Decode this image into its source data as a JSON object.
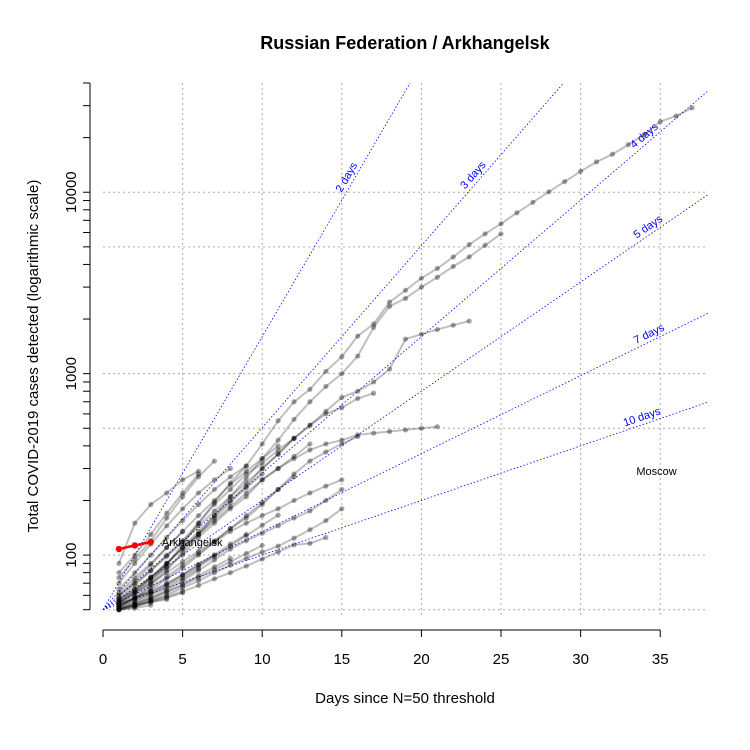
{
  "chart_data": {
    "type": "line",
    "title": "Russian Federation / Arkhangelsk",
    "xlabel": "Days since N=50 threshold",
    "ylabel": "Total COVID-2019 cases detected (logarithmic scale)",
    "y_scale": "log",
    "xlim": [
      0,
      38
    ],
    "ylim": [
      45,
      40000
    ],
    "x_ticks": [
      0,
      5,
      10,
      15,
      20,
      25,
      30,
      35
    ],
    "y_ticks": [
      100,
      1000,
      10000
    ],
    "grid": true,
    "doubling_guides": [
      {
        "label": "2 days",
        "doubling_days": 2,
        "label_x": 15.7
      },
      {
        "label": "3 days",
        "doubling_days": 3,
        "label_x": 23.6
      },
      {
        "label": "4 days",
        "doubling_days": 4,
        "label_x": 34.3
      },
      {
        "label": "5 days",
        "doubling_days": 5,
        "label_x": 34.5
      },
      {
        "label": "7 days",
        "doubling_days": 7,
        "label_x": 34.5
      },
      {
        "label": "10 days",
        "doubling_days": 10,
        "label_x": 34.0
      }
    ],
    "guide_color": "#0000ff",
    "series_color": "#000000",
    "highlight_color": "#ff0000",
    "highlight": {
      "name": "Arkhangelsk",
      "x": [
        1,
        2,
        3
      ],
      "y": [
        108,
        113,
        118
      ]
    },
    "annotations": [
      {
        "text": "Arkhangelsk",
        "x": 3.7,
        "y": 118
      },
      {
        "text": "Moscow",
        "x": 33.5,
        "y": 290
      }
    ],
    "series": [
      {
        "x": [
          1,
          2,
          3,
          4,
          5,
          6,
          7,
          8,
          9,
          10,
          11,
          12,
          13,
          14,
          15,
          16,
          17,
          18,
          19,
          20,
          21,
          22,
          23,
          24,
          25,
          26,
          27,
          28,
          29,
          30,
          31,
          32,
          33,
          34,
          35,
          36,
          37
        ],
        "y": [
          54,
          62,
          72,
          88,
          115,
          150,
          195,
          250,
          310,
          410,
          550,
          700,
          820,
          1030,
          1240,
          1610,
          1880,
          2480,
          2880,
          3360,
          3800,
          4400,
          5150,
          5900,
          6700,
          7700,
          8800,
          10050,
          11450,
          13050,
          14700,
          16200,
          18300,
          20800,
          24500,
          26300,
          29200
        ]
      },
      {
        "x": [
          1,
          2,
          3,
          4,
          5,
          6,
          7,
          8,
          9,
          10,
          11,
          12,
          13,
          14,
          15,
          16,
          17,
          18,
          19,
          20,
          21,
          22,
          23,
          24,
          25
        ],
        "y": [
          52,
          58,
          68,
          82,
          104,
          130,
          165,
          210,
          265,
          340,
          430,
          560,
          700,
          850,
          1000,
          1250,
          1800,
          2350,
          2600,
          3000,
          3400,
          3900,
          4400,
          5100,
          5900
        ]
      },
      {
        "x": [
          1,
          2,
          3,
          4,
          5,
          6,
          7,
          8,
          9,
          10,
          11,
          12,
          13,
          14,
          15,
          16,
          17,
          18,
          19,
          20,
          21,
          22,
          23
        ],
        "y": [
          55,
          62,
          75,
          90,
          110,
          135,
          165,
          200,
          240,
          300,
          360,
          440,
          520,
          620,
          740,
          800,
          900,
          1060,
          1550,
          1650,
          1750,
          1850,
          1950
        ]
      },
      {
        "x": [
          1,
          2,
          3,
          4,
          5,
          6,
          7,
          8,
          9,
          10,
          11,
          12,
          13,
          14,
          15,
          16,
          17,
          18,
          19,
          20,
          21
        ],
        "y": [
          56,
          64,
          75,
          90,
          110,
          130,
          155,
          185,
          220,
          260,
          300,
          340,
          380,
          410,
          430,
          460,
          470,
          480,
          490,
          500,
          510
        ]
      },
      {
        "x": [
          1,
          2,
          3,
          4,
          5,
          6,
          7,
          8,
          9,
          10,
          11,
          12,
          13,
          14,
          15,
          16,
          17
        ],
        "y": [
          60,
          70,
          82,
          98,
          118,
          145,
          175,
          210,
          250,
          300,
          360,
          440,
          520,
          600,
          650,
          730,
          780
        ]
      },
      {
        "x": [
          1,
          2,
          3,
          4,
          5,
          6,
          7,
          8,
          9,
          10,
          11,
          12,
          13,
          14,
          15,
          16
        ],
        "y": [
          56,
          62,
          70,
          80,
          92,
          105,
          120,
          140,
          160,
          190,
          230,
          280,
          330,
          370,
          410,
          450
        ]
      },
      {
        "x": [
          1,
          2,
          3,
          4,
          5,
          6
        ],
        "y": [
          90,
          150,
          190,
          220,
          260,
          290
        ]
      },
      {
        "x": [
          1,
          2,
          3,
          4,
          5,
          6,
          7,
          8,
          9,
          10,
          11,
          12,
          13,
          14,
          15
        ],
        "y": [
          52,
          58,
          66,
          76,
          88,
          102,
          118,
          135,
          150,
          165,
          180,
          200,
          220,
          240,
          260
        ]
      },
      {
        "x": [
          1,
          2,
          3,
          4,
          5,
          6,
          7,
          8,
          9,
          10,
          11,
          12,
          13,
          14,
          15
        ],
        "y": [
          50,
          54,
          58,
          64,
          72,
          82,
          94,
          108,
          120,
          132,
          145,
          160,
          175,
          200,
          230
        ]
      },
      {
        "x": [
          1,
          2,
          3,
          4,
          5,
          6,
          7,
          8,
          9,
          10,
          11,
          12,
          13,
          14,
          15
        ],
        "y": [
          50,
          52,
          56,
          60,
          66,
          72,
          80,
          88,
          96,
          104,
          112,
          124,
          138,
          155,
          180
        ]
      },
      {
        "x": [
          1,
          2,
          3,
          4,
          5,
          6,
          7,
          8,
          9,
          10,
          11,
          12,
          13,
          14
        ],
        "y": [
          51,
          53,
          56,
          59,
          63,
          68,
          74,
          80,
          87,
          95,
          104,
          114,
          116,
          125
        ]
      },
      {
        "x": [
          1,
          2,
          3,
          4,
          5,
          6,
          7,
          8,
          9,
          10,
          11,
          12,
          13
        ],
        "y": [
          55,
          60,
          70,
          85,
          100,
          125,
          150,
          180,
          210,
          260,
          300,
          350,
          410
        ]
      },
      {
        "x": [
          1,
          2,
          3,
          4,
          5,
          6,
          7,
          8,
          9,
          10,
          11,
          12
        ],
        "y": [
          58,
          68,
          82,
          100,
          120,
          150,
          190,
          230,
          280,
          320,
          380,
          440
        ]
      },
      {
        "x": [
          1,
          2,
          3,
          4,
          5,
          6,
          7,
          8,
          9,
          10,
          11,
          12
        ],
        "y": [
          53,
          58,
          64,
          74,
          85,
          100,
          118,
          140,
          165,
          195,
          230,
          270
        ]
      },
      {
        "x": [
          1,
          2,
          3,
          4,
          5,
          6,
          7,
          8,
          9,
          10,
          11
        ],
        "y": [
          62,
          75,
          90,
          110,
          135,
          165,
          200,
          245,
          290,
          340,
          400
        ]
      },
      {
        "x": [
          1,
          2,
          3,
          4,
          5,
          6,
          7,
          8,
          9,
          10,
          11
        ],
        "y": [
          52,
          56,
          61,
          68,
          76,
          86,
          98,
          112,
          128,
          146,
          166
        ]
      },
      {
        "x": [
          1,
          2,
          3,
          4,
          5,
          6,
          7,
          8,
          9,
          10
        ],
        "y": [
          57,
          65,
          76,
          90,
          108,
          130,
          160,
          195,
          235,
          280
        ]
      },
      {
        "x": [
          1,
          2,
          3,
          4,
          5,
          6,
          7,
          8,
          9,
          10
        ],
        "y": [
          50,
          53,
          57,
          62,
          68,
          75,
          83,
          92,
          102,
          113
        ]
      },
      {
        "x": [
          1,
          2,
          3,
          4,
          5,
          6,
          7,
          8,
          9
        ],
        "y": [
          65,
          80,
          100,
          125,
          155,
          190,
          230,
          270,
          310
        ]
      },
      {
        "x": [
          1,
          2,
          3,
          4,
          5,
          6,
          7,
          8,
          9
        ],
        "y": [
          54,
          58,
          63,
          70,
          78,
          88,
          100,
          115,
          130
        ]
      },
      {
        "x": [
          1,
          2,
          3,
          4,
          5,
          6,
          7,
          8
        ],
        "y": [
          70,
          90,
          115,
          145,
          180,
          220,
          260,
          300
        ]
      },
      {
        "x": [
          1,
          2,
          3,
          4,
          5,
          6,
          7,
          8
        ],
        "y": [
          51,
          54,
          58,
          63,
          69,
          77,
          86,
          96
        ]
      },
      {
        "x": [
          1,
          2,
          3,
          4,
          5,
          6,
          7
        ],
        "y": [
          75,
          95,
          120,
          160,
          210,
          270,
          330
        ]
      },
      {
        "x": [
          1,
          2,
          3,
          4,
          5,
          6,
          7
        ],
        "y": [
          53,
          57,
          62,
          69,
          78,
          89,
          100
        ]
      },
      {
        "x": [
          1,
          2,
          3,
          4,
          5,
          6
        ],
        "y": [
          80,
          100,
          130,
          170,
          220,
          280
        ]
      },
      {
        "x": [
          1,
          2,
          3,
          4,
          5,
          6
        ],
        "y": [
          52,
          55,
          60,
          66,
          74,
          84
        ]
      },
      {
        "x": [
          1,
          2,
          3,
          4,
          5
        ],
        "y": [
          60,
          72,
          88,
          110,
          135
        ]
      },
      {
        "x": [
          1,
          2,
          3,
          4,
          5
        ],
        "y": [
          50,
          52,
          55,
          58,
          62
        ]
      },
      {
        "x": [
          1,
          2,
          3,
          4
        ],
        "y": [
          57,
          64,
          74,
          86
        ]
      },
      {
        "x": [
          1,
          2,
          3,
          4
        ],
        "y": [
          51,
          53,
          55,
          57
        ]
      },
      {
        "x": [
          1,
          2,
          3
        ],
        "y": [
          54,
          58,
          63
        ]
      },
      {
        "x": [
          1,
          2,
          3
        ],
        "y": [
          50,
          51,
          53
        ]
      }
    ]
  }
}
